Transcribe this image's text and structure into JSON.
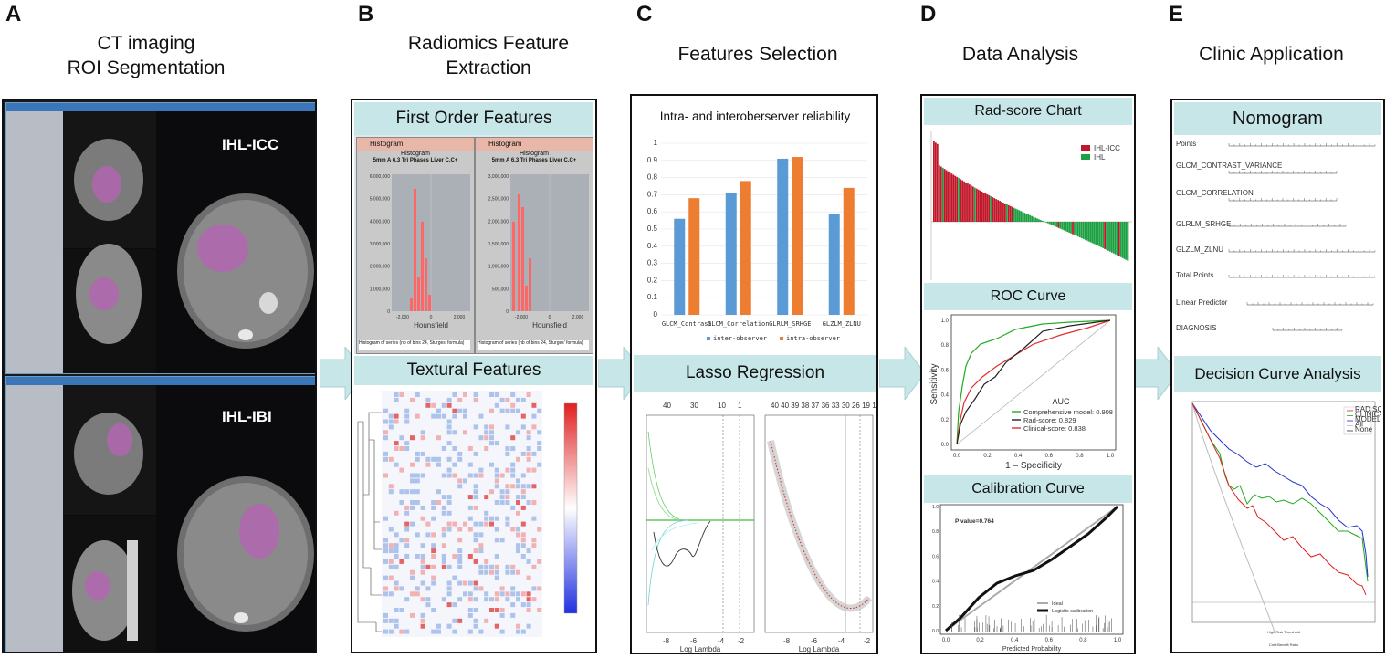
{
  "panels": [
    {
      "letter": "A",
      "title": [
        "CT imaging",
        "ROI  Segmentation"
      ]
    },
    {
      "letter": "B",
      "title": [
        "Radiomics Feature",
        "Extraction"
      ]
    },
    {
      "letter": "C",
      "title": [
        "Features Selection"
      ]
    },
    {
      "letter": "D",
      "title": [
        "Data Analysis"
      ]
    },
    {
      "letter": "E",
      "title": [
        "Clinic Application"
      ]
    }
  ],
  "a": {
    "top_label": "IHL-ICC",
    "bottom_label": "IHL-IBI"
  },
  "b": {
    "first_order": "First Order Features",
    "textural": "Textural Features",
    "histogram_window": "Histogram",
    "histogram_title": "Histogram",
    "histogram_subtitle": "5mm A 6.3 Tri Phases Liver C.C+",
    "xlabel": "Hounsfield",
    "legend": "Histogram of series (nb of bins 24, Sturges' formula)",
    "left_ticks": [
      "6,000,000",
      "5,000,000",
      "4,000,000",
      "3,000,000",
      "2,000,000",
      "1,000,000",
      "0"
    ],
    "right_ticks": [
      "3,000,000",
      "2,500,000",
      "2,000,000",
      "1,500,000",
      "1,000,000",
      "500,000",
      "0"
    ],
    "x_ticks_left": [
      "-2,000",
      "0",
      "2,000"
    ],
    "x_ticks_right": [
      "-2,000",
      "0",
      "2,000"
    ]
  },
  "c": {
    "reliability": "Intra- and interoberserver reliability",
    "lasso": "Lasso Regression",
    "lasso_xlabel": "Log Lambda"
  },
  "chart_data": {
    "type": "bar",
    "title": "Intra- and interoberserver reliability",
    "categories": [
      "GLCM_Contrast",
      "GLCM_Correlation",
      "GLRLM_SRHGE",
      "GLZLM_ZLNU"
    ],
    "series": [
      {
        "name": "inter-observer",
        "values": [
          0.56,
          0.71,
          0.91,
          0.59
        ],
        "color": "#5b9bd5"
      },
      {
        "name": "intra-observer",
        "values": [
          0.68,
          0.78,
          0.92,
          0.74
        ],
        "color": "#ed7d31"
      }
    ],
    "ylim": [
      0,
      1
    ],
    "yticks": [
      "0",
      "0.1",
      "0.2",
      "0.3",
      "0.4",
      "0.5",
      "0.6",
      "0.7",
      "0.8",
      "0.9",
      "1"
    ],
    "legend_position": "bottom"
  },
  "d": {
    "radscore": "Rad-score Chart",
    "radscore_legend": [
      "IHL-ICC",
      "IHL"
    ],
    "roc": "ROC Curve",
    "roc_ylabel": "Sensitivity",
    "roc_xlabel": "1 – Specificity",
    "roc_xticks": [
      "0.0",
      "0.2",
      "0.4",
      "0.6",
      "0.8",
      "1.0"
    ],
    "roc_yticks": [
      "0.0",
      "0.2",
      "0.4",
      "0.6",
      "0.8",
      "1.0"
    ],
    "auc_title": "AUC",
    "auc_items": [
      "Comprehensive model: 0.908",
      "Rad-score: 0.829",
      "Clinical-score: 0.838"
    ],
    "calibration": "Calibration Curve",
    "pvalue": "P value=0.764",
    "cal_xlabel": "Predicted Probability",
    "cal_xticks": [
      "0.0",
      "0.2",
      "0.4",
      "0.6",
      "0.8",
      "1.0"
    ],
    "cal_yticks": [
      "0.0",
      "0.2",
      "0.4",
      "0.6",
      "0.8",
      "1.0"
    ],
    "cal_legend": [
      "Ideal",
      "Logistic calibration"
    ]
  },
  "e": {
    "nomogram": "Nomogram",
    "dca": "Decision Curve Analysis",
    "nomo_rows": [
      "Points",
      "GLCM_CONTRAST_VARIANCE",
      "GLCM_CORRELATION",
      "GLRLM_SRHGE",
      "GLZLM_ZLNU",
      "Total Points",
      "Linear Predictor",
      "DIAGNOSIS"
    ],
    "dca_legend": [
      "RAD SCORE",
      "CLINICAL SCORE",
      "MODEL SCORE",
      "All",
      "None"
    ],
    "dca_xlabel": "High Risk Threshold",
    "dca_xlabel2": "Cost:Benefit Ratio"
  },
  "colors": {
    "band": "#c6e6e8",
    "arrow": "#c6e6e8",
    "purple": "#b266b2"
  }
}
